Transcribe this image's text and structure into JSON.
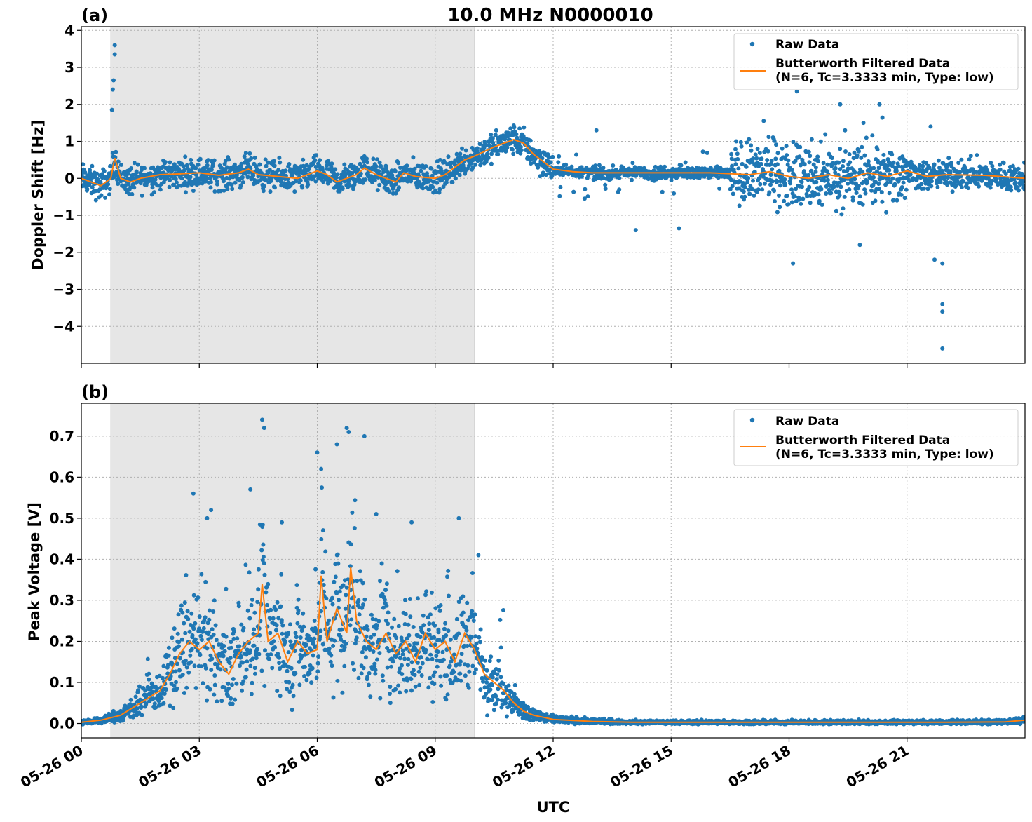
{
  "figure": {
    "title": "10.0 MHz N0000010",
    "xlabel": "UTC"
  },
  "legend": {
    "raw_label": "Raw Data",
    "filtered_label_line1": "Butterworth Filtered Data",
    "filtered_label_line2": "(N=6, Tc=3.3333 min, Type: low)",
    "placement": "top-right"
  },
  "colors": {
    "raw": "#1f77b4",
    "filtered": "#ff7f0e",
    "shade": "#e6e6e6"
  },
  "chart_data": [
    {
      "type": "scatter",
      "panel_label": "(a)",
      "ylabel": "Doppler Shift [Hz]",
      "xlim": [
        0,
        24
      ],
      "ylim": [
        -5,
        4.1
      ],
      "yticks": [
        4,
        3,
        2,
        1,
        0,
        -1,
        -2,
        -3,
        -4
      ],
      "ytick_labels": [
        "4",
        "3",
        "2",
        "1",
        "0",
        "−1",
        "−2",
        "−3",
        "−4"
      ],
      "xticks": [
        0,
        3,
        6,
        9,
        12,
        15,
        18,
        21
      ],
      "xtick_labels": [
        "05-26 00",
        "05-26 03",
        "05-26 06",
        "05-26 09",
        "05-26 12",
        "05-26 15",
        "05-26 18",
        "05-26 21"
      ],
      "shaded_interval": [
        0.75,
        10.0
      ],
      "grid": true,
      "series": [
        {
          "name": "Butterworth Filtered Data",
          "x": [
            0,
            0.25,
            0.5,
            0.75,
            0.85,
            1,
            1.25,
            1.5,
            1.75,
            2,
            2.5,
            3,
            3.5,
            4,
            4.25,
            4.5,
            5,
            5.5,
            6,
            6.25,
            6.5,
            7,
            7.2,
            7.5,
            8,
            8.2,
            8.5,
            9,
            9.25,
            9.5,
            9.75,
            10,
            10.5,
            11,
            11.25,
            11.5,
            11.75,
            12,
            12.5,
            13,
            14,
            15,
            16,
            17,
            17.5,
            18,
            18.5,
            19,
            19.5,
            20,
            20.5,
            21,
            21.5,
            22,
            23,
            24
          ],
          "y": [
            0.0,
            -0.1,
            -0.2,
            0.0,
            0.55,
            0.0,
            -0.1,
            0.0,
            0.05,
            0.1,
            0.12,
            0.15,
            0.08,
            0.15,
            0.25,
            0.1,
            0.05,
            0.0,
            0.2,
            0.1,
            -0.1,
            0.1,
            0.28,
            0.1,
            -0.1,
            0.15,
            0.05,
            0.0,
            0.1,
            0.3,
            0.5,
            0.6,
            0.85,
            1.05,
            0.95,
            0.65,
            0.45,
            0.25,
            0.18,
            0.15,
            0.15,
            0.15,
            0.15,
            0.1,
            0.18,
            0.05,
            0.0,
            0.1,
            0.0,
            0.15,
            0.05,
            0.2,
            0.05,
            0.1,
            0.08,
            0.0
          ]
        },
        {
          "name": "Raw Data",
          "outliers": [
            [
              0.85,
              3.6
            ],
            [
              0.85,
              3.35
            ],
            [
              0.82,
              2.65
            ],
            [
              0.8,
              2.4
            ],
            [
              0.78,
              1.85
            ],
            [
              18.2,
              2.35
            ],
            [
              19.3,
              2.0
            ],
            [
              20.3,
              2.0
            ],
            [
              21.6,
              1.4
            ],
            [
              21.7,
              -2.2
            ],
            [
              21.9,
              -2.3
            ],
            [
              21.9,
              -3.4
            ],
            [
              21.9,
              -3.6
            ],
            [
              21.9,
              -4.6
            ],
            [
              18.1,
              -2.3
            ],
            [
              19.8,
              -1.8
            ],
            [
              14.1,
              -1.4
            ],
            [
              15.2,
              -1.35
            ],
            [
              12.8,
              -0.55
            ],
            [
              13.1,
              1.3
            ]
          ]
        }
      ]
    },
    {
      "type": "scatter",
      "panel_label": "(b)",
      "ylabel": "Peak Voltage [V]",
      "xlim": [
        0,
        24
      ],
      "ylim": [
        -0.035,
        0.78
      ],
      "yticks": [
        0.0,
        0.1,
        0.2,
        0.3,
        0.4,
        0.5,
        0.6,
        0.7
      ],
      "ytick_labels": [
        "0.0",
        "0.1",
        "0.2",
        "0.3",
        "0.4",
        "0.5",
        "0.6",
        "0.7"
      ],
      "xticks": [
        0,
        3,
        6,
        9,
        12,
        15,
        18,
        21
      ],
      "xtick_labels": [
        "05-26 00",
        "05-26 03",
        "05-26 06",
        "05-26 09",
        "05-26 12",
        "05-26 15",
        "05-26 18",
        "05-26 21"
      ],
      "shaded_interval": [
        0.75,
        10.0
      ],
      "grid": true,
      "series": [
        {
          "name": "Butterworth Filtered Data",
          "x": [
            0,
            0.5,
            1,
            1.5,
            2,
            2.25,
            2.5,
            2.75,
            3,
            3.25,
            3.5,
            3.75,
            4,
            4.25,
            4.5,
            4.6,
            4.75,
            5,
            5.25,
            5.5,
            5.75,
            6,
            6.1,
            6.25,
            6.5,
            6.75,
            6.85,
            7,
            7.25,
            7.5,
            7.75,
            8,
            8.25,
            8.5,
            8.75,
            9,
            9.25,
            9.5,
            9.75,
            10,
            10.25,
            10.5,
            10.75,
            11,
            11.25,
            11.5,
            11.75,
            12,
            13,
            14,
            16,
            18,
            20,
            22,
            23.5,
            24
          ],
          "y": [
            0.003,
            0.008,
            0.02,
            0.05,
            0.08,
            0.12,
            0.17,
            0.2,
            0.18,
            0.2,
            0.15,
            0.12,
            0.17,
            0.2,
            0.22,
            0.34,
            0.2,
            0.22,
            0.15,
            0.2,
            0.17,
            0.18,
            0.36,
            0.2,
            0.28,
            0.22,
            0.38,
            0.25,
            0.2,
            0.18,
            0.22,
            0.17,
            0.2,
            0.15,
            0.22,
            0.18,
            0.2,
            0.15,
            0.22,
            0.18,
            0.12,
            0.1,
            0.08,
            0.05,
            0.03,
            0.02,
            0.015,
            0.01,
            0.005,
            0.003,
            0.003,
            0.003,
            0.003,
            0.003,
            0.004,
            0.008
          ]
        },
        {
          "name": "Raw Data",
          "outliers": [
            [
              2.85,
              0.56
            ],
            [
              3.3,
              0.52
            ],
            [
              3.2,
              0.5
            ],
            [
              4.3,
              0.57
            ],
            [
              4.6,
              0.74
            ],
            [
              4.65,
              0.72
            ],
            [
              5.1,
              0.49
            ],
            [
              6.0,
              0.66
            ],
            [
              6.1,
              0.62
            ],
            [
              6.5,
              0.68
            ],
            [
              6.75,
              0.72
            ],
            [
              6.8,
              0.71
            ],
            [
              7.2,
              0.7
            ],
            [
              7.5,
              0.51
            ],
            [
              8.4,
              0.49
            ],
            [
              9.6,
              0.5
            ],
            [
              10.1,
              0.41
            ]
          ]
        }
      ]
    }
  ]
}
